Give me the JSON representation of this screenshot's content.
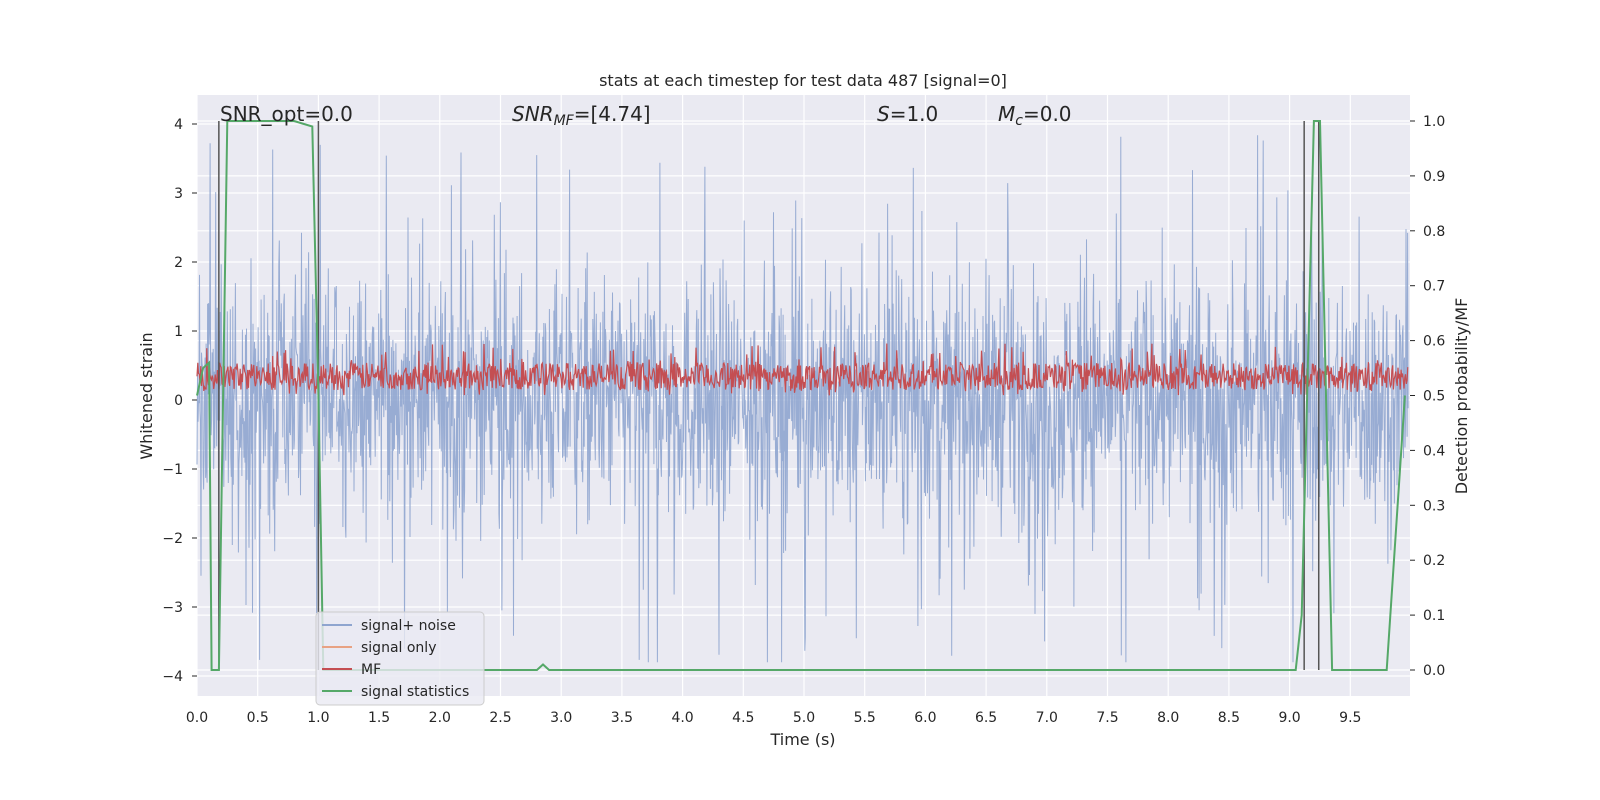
{
  "chart_data": {
    "type": "line",
    "title": "stats at each timestep for test data 487 [signal=0]",
    "xlabel": "Time (s)",
    "ylabel": "Whitened strain",
    "ylabel_right": "Detection probability/MF",
    "xlim": [
      0.0,
      10.0
    ],
    "ylim": [
      -4.3,
      4.4
    ],
    "ylim_right": [
      -0.02,
      1.0
    ],
    "x_ticks": [
      "0.0",
      "0.5",
      "1.0",
      "1.5",
      "2.0",
      "2.5",
      "3.0",
      "3.5",
      "4.0",
      "4.5",
      "5.0",
      "5.5",
      "6.0",
      "6.5",
      "7.0",
      "7.5",
      "8.0",
      "8.5",
      "9.0",
      "9.5"
    ],
    "y_ticks": [
      "4",
      "3",
      "2",
      "1",
      "0",
      "−1",
      "−2",
      "−3",
      "−4"
    ],
    "y_ticks_right": [
      "1.0",
      "0.9",
      "0.8",
      "0.7",
      "0.6",
      "0.5",
      "0.4",
      "0.3",
      "0.2",
      "0.1",
      "0.0"
    ],
    "grid": true,
    "legend_placement": "lower-left",
    "annotations": {
      "snr_opt": "SNR_opt=0.0",
      "snr_mf_sym": "SNR",
      "snr_mf_sub": "MF",
      "snr_mf_tail": "=[4.74]",
      "s_sym": "S",
      "s_val": "=1.0",
      "mc_sym": "M",
      "mc_sub": "c",
      "mc_val": "=0.0"
    },
    "series": [
      {
        "name": "signal+ noise",
        "color": "#8fa5cf",
        "note": "dense whitened strain trace, approx range -3.8 to 4.0"
      },
      {
        "name": "signal only",
        "color": "#e8a283",
        "values": []
      },
      {
        "name": "MF",
        "color": "#c44e52",
        "note": "matched-filter output on right axis, approx 0.50 to 0.60"
      },
      {
        "name": "signal statistics",
        "color": "#55a868",
        "x": [
          0.0,
          0.05,
          0.1,
          0.12,
          0.18,
          0.25,
          0.3,
          0.4,
          0.6,
          0.8,
          0.95,
          1.0,
          1.04,
          1.1,
          2.0,
          2.8,
          2.85,
          2.9,
          3.5,
          5.0,
          7.0,
          9.0,
          9.05,
          9.1,
          9.15,
          9.2,
          9.25,
          9.3,
          9.35,
          9.4,
          9.6,
          9.8,
          9.95
        ],
        "values": [
          0.5,
          0.55,
          0.56,
          0.0,
          0.0,
          1.0,
          1.0,
          1.0,
          1.0,
          1.0,
          0.99,
          0.5,
          0.0,
          0.0,
          0.0,
          0.0,
          0.01,
          0.0,
          0.0,
          0.0,
          0.0,
          0.0,
          0.0,
          0.1,
          0.55,
          1.0,
          1.0,
          0.5,
          0.0,
          0.0,
          0.0,
          0.0,
          0.5
        ]
      }
    ],
    "vertical_markers_x": [
      0.18,
      1.0,
      9.12,
      9.24
    ],
    "vertical_markers_color": "#555555"
  }
}
